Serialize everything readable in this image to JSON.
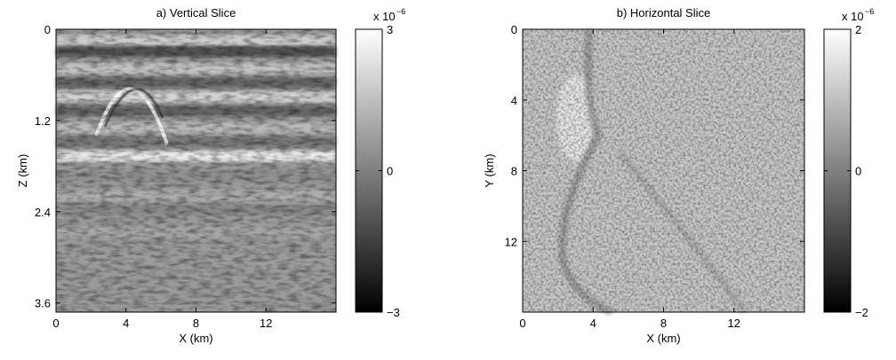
{
  "chart_data": [
    {
      "type": "image",
      "title": "a) Vertical Slice",
      "x_label": "X (km)",
      "y_label": "Z (km)",
      "xlim": [
        0,
        16
      ],
      "xticks": [
        0,
        4,
        8,
        12
      ],
      "ylim": [
        3.72,
        0
      ],
      "yticks": [
        0,
        1.2,
        2.4,
        3.6
      ],
      "colorbar": {
        "clim": [
          -3,
          3
        ],
        "ticks": [
          {
            "value": -3,
            "label": "−3"
          },
          0,
          3
        ],
        "scale_label": "x 10",
        "scale_exponent": "−6"
      }
    },
    {
      "type": "image",
      "title": "b) Horizontal Slice",
      "x_label": "X (km)",
      "y_label": "Y (km)",
      "xlim": [
        0,
        16
      ],
      "xticks": [
        0,
        4,
        8,
        12
      ],
      "ylim": [
        16,
        0
      ],
      "yticks": [
        0,
        4,
        8,
        12
      ],
      "colorbar": {
        "clim": [
          -2,
          2
        ],
        "ticks": [
          {
            "value": -2,
            "label": "−2"
          },
          0,
          2
        ],
        "scale_label": "x 10",
        "scale_exponent": "−6"
      }
    }
  ]
}
